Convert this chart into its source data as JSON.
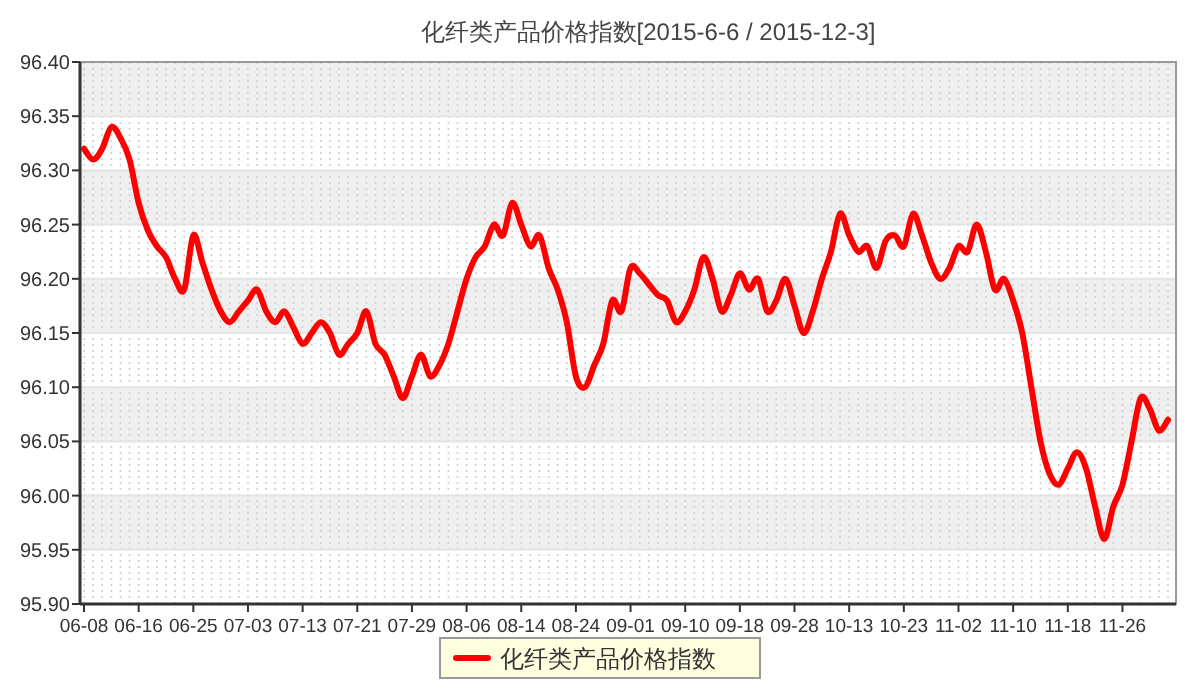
{
  "chart_data": {
    "type": "line",
    "title": "化纤类产品价格指数[2015-6-6 / 2015-12-3]",
    "categories": [
      "06-08",
      null,
      null,
      null,
      null,
      null,
      "06-16",
      null,
      null,
      null,
      null,
      null,
      "06-25",
      null,
      null,
      null,
      null,
      null,
      "07-03",
      null,
      null,
      null,
      null,
      null,
      "07-13",
      null,
      null,
      null,
      null,
      null,
      "07-21",
      null,
      null,
      null,
      null,
      null,
      "07-29",
      null,
      null,
      null,
      null,
      null,
      "08-06",
      null,
      null,
      null,
      null,
      null,
      "08-14",
      null,
      null,
      null,
      null,
      null,
      "08-24",
      null,
      null,
      null,
      null,
      null,
      "09-01",
      null,
      null,
      null,
      null,
      null,
      "09-10",
      null,
      null,
      null,
      null,
      null,
      "09-18",
      null,
      null,
      null,
      null,
      null,
      "09-28",
      null,
      null,
      null,
      null,
      null,
      "10-13",
      null,
      null,
      null,
      null,
      null,
      "10-23",
      null,
      null,
      null,
      null,
      null,
      "11-02",
      null,
      null,
      null,
      null,
      null,
      "11-10",
      null,
      null,
      null,
      null,
      null,
      "11-18",
      null,
      null,
      null,
      null,
      null,
      "11-26",
      null,
      null,
      null,
      null,
      null
    ],
    "series": [
      {
        "name": "化纤类产品价格指数",
        "color": "#ff0000",
        "values": [
          96.32,
          96.31,
          96.32,
          96.34,
          96.33,
          96.31,
          96.27,
          96.245,
          96.23,
          96.22,
          96.2,
          96.19,
          96.24,
          96.215,
          96.19,
          96.17,
          96.16,
          96.17,
          96.18,
          96.19,
          96.17,
          96.16,
          96.17,
          96.155,
          96.14,
          96.15,
          96.16,
          96.15,
          96.13,
          96.14,
          96.15,
          96.17,
          96.14,
          96.13,
          96.11,
          96.09,
          96.11,
          96.13,
          96.11,
          96.12,
          96.14,
          96.17,
          96.2,
          96.22,
          96.23,
          96.25,
          96.24,
          96.27,
          96.25,
          96.23,
          96.24,
          96.21,
          96.19,
          96.16,
          96.11,
          96.1,
          96.12,
          96.14,
          96.18,
          96.17,
          96.21,
          96.205,
          96.195,
          96.185,
          96.18,
          96.16,
          96.17,
          96.19,
          96.22,
          96.2,
          96.17,
          96.185,
          96.205,
          96.19,
          96.2,
          96.17,
          96.18,
          96.2,
          96.175,
          96.15,
          96.17,
          96.2,
          96.225,
          96.26,
          96.24,
          96.225,
          96.23,
          96.21,
          96.235,
          96.24,
          96.23,
          96.26,
          96.24,
          96.215,
          96.2,
          96.21,
          96.23,
          96.225,
          96.25,
          96.225,
          96.19,
          96.2,
          96.18,
          96.15,
          96.1,
          96.05,
          96.02,
          96.01,
          96.025,
          96.04,
          96.025,
          95.99,
          95.96,
          95.99,
          96.01,
          96.05,
          96.09,
          96.08,
          96.06,
          96.07
        ]
      }
    ],
    "ylim": [
      95.9,
      96.4
    ],
    "yticks": [
      {
        "value": 95.9,
        "label": "95.90"
      },
      {
        "value": 95.95,
        "label": "95.95"
      },
      {
        "value": 96.0,
        "label": "96.00"
      },
      {
        "value": 96.05,
        "label": "96.05"
      },
      {
        "value": 96.1,
        "label": "96.10"
      },
      {
        "value": 96.15,
        "label": "96.15"
      },
      {
        "value": 96.2,
        "label": "96.20"
      },
      {
        "value": 96.25,
        "label": "96.25"
      },
      {
        "value": 96.3,
        "label": "96.30"
      },
      {
        "value": 96.35,
        "label": "96.35"
      },
      {
        "value": 96.4,
        "label": "96.40"
      }
    ],
    "grid": true,
    "legend": "bottom",
    "marker": "none",
    "line_style": "solid"
  }
}
